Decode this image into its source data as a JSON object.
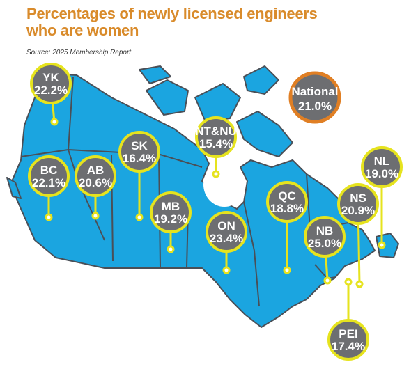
{
  "title": "Percentages of newly licensed engineers who are women",
  "source": "Source: 2025 Membership Report",
  "national": {
    "label": "National",
    "value": "21.0%"
  },
  "regions": [
    {
      "code": "YK",
      "value": "22.2%"
    },
    {
      "code": "BC",
      "value": "22.1%"
    },
    {
      "code": "AB",
      "value": "20.6%"
    },
    {
      "code": "SK",
      "value": "16.4%"
    },
    {
      "code": "MB",
      "value": "19.2%"
    },
    {
      "code": "NT&NU",
      "value": "15.4%"
    },
    {
      "code": "ON",
      "value": "23.4%"
    },
    {
      "code": "QC",
      "value": "18.8%"
    },
    {
      "code": "NB",
      "value": "25.0%"
    },
    {
      "code": "NS",
      "value": "20.9%"
    },
    {
      "code": "NL",
      "value": "19.0%"
    },
    {
      "code": "PEI",
      "value": "17.4%"
    }
  ]
}
